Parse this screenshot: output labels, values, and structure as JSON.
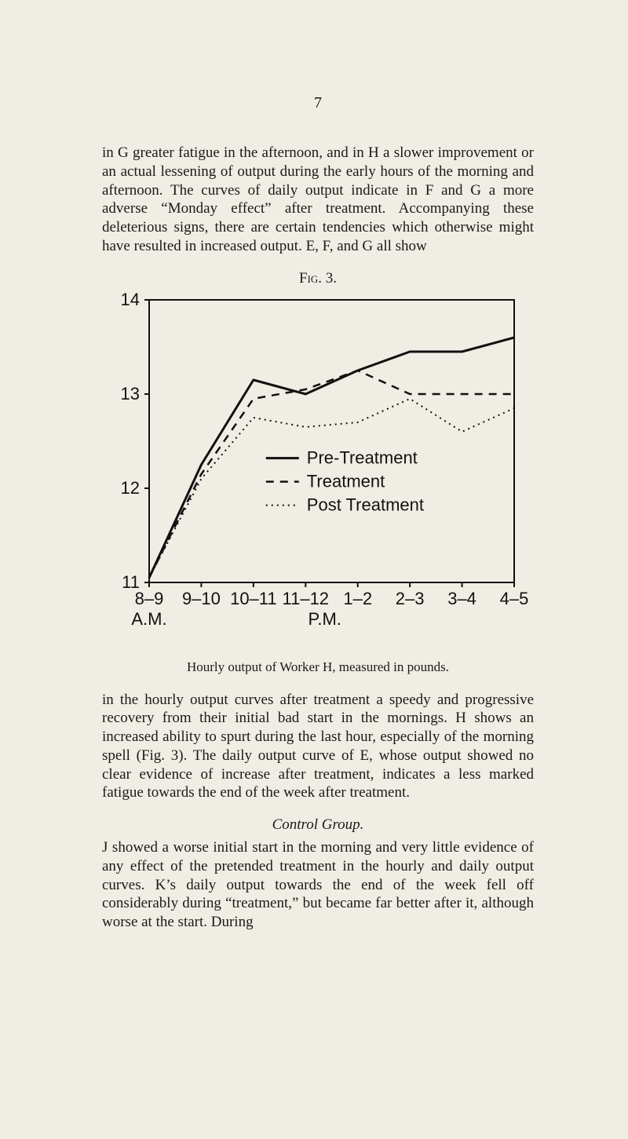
{
  "page_number": "7",
  "para1": "in G greater fatigue in the afternoon, and in H a slower improvement or an actual lessening of output during the early hours of the morning and afternoon. The curves of daily output indicate in F and G a more adverse “Monday effect” after treatment. Accompanying these deleterious signs, there are certain tendencies which otherwise might have resulted in increased output. E, F, and G all show",
  "fig_label": "Fig. 3.",
  "chart": {
    "type": "line",
    "x_categories": [
      "8–9",
      "9–10",
      "10–11",
      "11–12",
      "1–2",
      "2–3",
      "3–4",
      "4–5"
    ],
    "x_label_left": "A.M.",
    "x_label_center": "P.M.",
    "y_ticks": [
      11,
      12,
      13,
      14
    ],
    "ylim": [
      11,
      14
    ],
    "series": [
      {
        "name": "Pre-Treatment",
        "style": "solid",
        "values": [
          11.05,
          12.25,
          13.15,
          13.0,
          13.25,
          13.45,
          13.45,
          13.6
        ],
        "color": "#111111",
        "width": 3
      },
      {
        "name": "Treatment",
        "style": "dash",
        "values": [
          11.05,
          12.15,
          12.95,
          13.05,
          13.25,
          13.0,
          13.0,
          13.0
        ],
        "color": "#111111",
        "width": 2.5,
        "dash": "10,8"
      },
      {
        "name": "Post Treatment",
        "style": "dot",
        "values": [
          11.05,
          12.1,
          12.75,
          12.65,
          12.7,
          12.95,
          12.6,
          12.85
        ],
        "color": "#111111",
        "width": 2,
        "dash": "2,5"
      }
    ],
    "legend": {
      "items": [
        {
          "prefix_style": "solid",
          "label": "Pre‑Treatment"
        },
        {
          "prefix_style": "dash",
          "label": "Treatment"
        },
        {
          "prefix_style": "dot",
          "label": "Post Treatment"
        }
      ]
    },
    "background_color": "#f0ede4",
    "axis_color": "#111111"
  },
  "caption": "Hourly output of Worker H, measured in pounds.",
  "para2": "in the hourly output curves after treatment a speedy and progressive recovery from their initial bad start in the mornings. H shows an increased ability to spurt during the last hour, especially of the morning spell (Fig. 3). The daily output curve of E, whose output showed no clear evidence of increase after treatment, indicates a less marked fatigue towards the end of the week after treatment.",
  "section_title": "Control Group.",
  "para3": "J showed a worse initial start in the morning and very little evidence of any effect of the pretended treatment in the hourly and daily output curves. K’s daily output towards the end of the week fell off considerably during “treatment,” but became far better after it, although worse at the start. During"
}
